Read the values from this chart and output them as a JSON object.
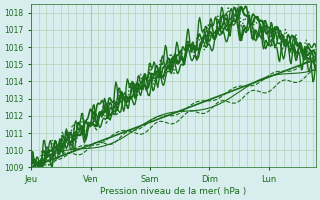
{
  "bg_color": "#d8eeee",
  "plot_bg_color": "#d8eeee",
  "grid_color": "#aaccaa",
  "line_color": "#1a6b1a",
  "ylabel_text": "Pression niveau de la mer( hPa )",
  "x_tick_labels": [
    "Jeu",
    "Ven",
    "Sam",
    "Dim",
    "Lun"
  ],
  "x_tick_positions": [
    0,
    24,
    48,
    72,
    96
  ],
  "ylim": [
    1009,
    1018.5
  ],
  "xlim": [
    0,
    115
  ],
  "yticks": [
    1009,
    1010,
    1011,
    1012,
    1013,
    1014,
    1015,
    1016,
    1017,
    1018
  ],
  "total_hours": 120
}
